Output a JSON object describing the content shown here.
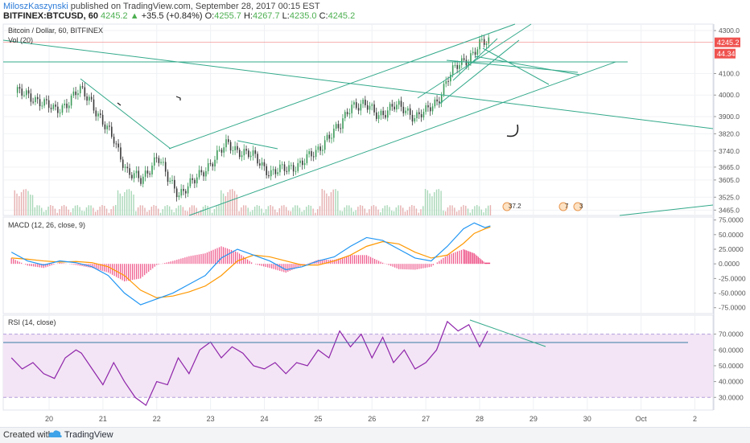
{
  "header": {
    "author": "MiloszKaszynski",
    "published_text": " published on TradingView.com, September 28, 2017 00:15 EST",
    "symbol": "BITFINEX:BTCUSD, 60",
    "price": "4245.2",
    "change_arrow": "▲",
    "change": "+35.5 (+0.84%)",
    "ohlc": {
      "o_label": "O:",
      "o": "4255.7",
      "h_label": "H:",
      "h": "4267.7",
      "l_label": "L:",
      "l": "4235.0",
      "c_label": "C:",
      "c": "4245.2"
    }
  },
  "footer": {
    "created_with": "Created with",
    "brand": "TradingView"
  },
  "colors": {
    "up": "#26a69a",
    "down": "#ef5350",
    "candle_up": "#3c9b5a",
    "candle_down": "#3a3a3a",
    "trendline": "#33a98a",
    "macd": "#2196f3",
    "signal": "#ff9800",
    "hist": "#e91e63",
    "rsi": "#8e24aa",
    "rsi_band": "#f3e5f5",
    "price_line": "#ef5350"
  },
  "chart_data": [
    {
      "type": "candlestick",
      "title": "Bitcoin / Dollar, 60, BITFINEX",
      "volume_label": "Vol (20)",
      "ylim": [
        3440,
        4330
      ],
      "y_ticks": [
        "4300.0",
        "4100.0",
        "4000.0",
        "3900.0",
        "3820.0",
        "3740.0",
        "3665.0",
        "3605.0",
        "3525.0",
        "3465.0"
      ],
      "last_price_label": "4245.2",
      "volume_label_value": "44.34",
      "x_ticks": [
        "20",
        "21",
        "22",
        "23",
        "24",
        "25",
        "26",
        "27",
        "28",
        "29",
        "30",
        "Oct",
        "2"
      ],
      "series_path": [
        [
          19.4,
          4010
        ],
        [
          19.7,
          3990
        ],
        [
          19.9,
          3960
        ],
        [
          20.1,
          3925
        ],
        [
          20.3,
          3960
        ],
        [
          20.55,
          4020
        ],
        [
          20.75,
          3985
        ],
        [
          21.0,
          3860
        ],
        [
          21.2,
          3790
        ],
        [
          21.45,
          3640
        ],
        [
          21.7,
          3600
        ],
        [
          22.0,
          3720
        ],
        [
          22.2,
          3605
        ],
        [
          22.4,
          3545
        ],
        [
          22.7,
          3600
        ],
        [
          23.0,
          3690
        ],
        [
          23.3,
          3770
        ],
        [
          23.55,
          3740
        ],
        [
          23.8,
          3710
        ],
        [
          24.1,
          3640
        ],
        [
          24.4,
          3655
        ],
        [
          24.7,
          3690
        ],
        [
          24.95,
          3730
        ],
        [
          25.15,
          3805
        ],
        [
          25.4,
          3850
        ],
        [
          25.6,
          3960
        ],
        [
          25.85,
          3950
        ],
        [
          26.1,
          3910
        ],
        [
          26.4,
          3945
        ],
        [
          26.6,
          3935
        ],
        [
          26.8,
          3900
        ],
        [
          27.0,
          3920
        ],
        [
          27.2,
          3975
        ],
        [
          27.4,
          4080
        ],
        [
          27.6,
          4140
        ],
        [
          27.8,
          4180
        ],
        [
          28.0,
          4235
        ],
        [
          28.15,
          4245
        ]
      ],
      "annotations": [
        "37.2",
        "7",
        "3"
      ]
    },
    {
      "type": "line",
      "title": "MACD (12, 26, close, 9)",
      "ylim": [
        -85,
        80
      ],
      "y_ticks": [
        "75.0000",
        "50.0000",
        "25.0000",
        "0.0000",
        "-25.0000",
        "-50.0000",
        "-75.0000"
      ],
      "series": [
        {
          "name": "MACD",
          "x": [
            19.3,
            19.6,
            19.9,
            20.2,
            20.5,
            20.8,
            21.1,
            21.4,
            21.7,
            22.0,
            22.3,
            22.6,
            22.9,
            23.2,
            23.5,
            23.8,
            24.1,
            24.4,
            24.7,
            25.0,
            25.3,
            25.6,
            25.9,
            26.2,
            26.5,
            26.8,
            27.1,
            27.4,
            27.7,
            27.9,
            28.1,
            28.2
          ],
          "values": [
            20,
            5,
            -2,
            5,
            2,
            -5,
            -20,
            -50,
            -70,
            -60,
            -50,
            -35,
            -20,
            10,
            25,
            15,
            5,
            -10,
            -5,
            5,
            12,
            30,
            45,
            40,
            25,
            10,
            5,
            30,
            60,
            70,
            62,
            65
          ]
        },
        {
          "name": "Signal",
          "x": [
            19.3,
            19.6,
            19.9,
            20.2,
            20.5,
            20.8,
            21.1,
            21.4,
            21.7,
            22.0,
            22.3,
            22.6,
            22.9,
            23.2,
            23.5,
            23.8,
            24.1,
            24.4,
            24.7,
            25.0,
            25.3,
            25.6,
            25.9,
            26.2,
            26.5,
            26.8,
            27.1,
            27.4,
            27.7,
            27.9,
            28.1,
            28.2
          ],
          "values": [
            10,
            8,
            5,
            3,
            4,
            2,
            -5,
            -20,
            -45,
            -58,
            -55,
            -48,
            -38,
            -20,
            5,
            15,
            12,
            5,
            -2,
            -2,
            5,
            15,
            30,
            38,
            34,
            20,
            10,
            15,
            35,
            52,
            60,
            63
          ]
        },
        {
          "name": "Histogram",
          "x": [
            19.3,
            19.6,
            19.9,
            20.2,
            20.5,
            20.8,
            21.1,
            21.4,
            21.7,
            22.0,
            22.3,
            22.6,
            22.9,
            23.2,
            23.5,
            23.8,
            24.1,
            24.4,
            24.7,
            25.0,
            25.3,
            25.6,
            25.9,
            26.2,
            26.5,
            26.8,
            27.1,
            27.4,
            27.7,
            27.9,
            28.1,
            28.2
          ],
          "values": [
            10,
            -3,
            -7,
            2,
            -2,
            -7,
            -15,
            -30,
            -25,
            -2,
            5,
            13,
            18,
            30,
            20,
            0,
            -7,
            -15,
            -3,
            7,
            7,
            15,
            15,
            2,
            -9,
            -10,
            -5,
            15,
            25,
            18,
            2,
            2
          ]
        }
      ]
    },
    {
      "type": "line",
      "title": "RSI (14, close)",
      "ylim": [
        22,
        82
      ],
      "y_ticks": [
        "70.0000",
        "60.0000",
        "50.0000",
        "40.0000",
        "30.0000"
      ],
      "band": [
        30,
        70
      ],
      "series": [
        {
          "name": "RSI",
          "x": [
            19.3,
            19.5,
            19.7,
            19.9,
            20.1,
            20.3,
            20.5,
            20.6,
            20.8,
            21.0,
            21.2,
            21.4,
            21.6,
            21.8,
            22.0,
            22.2,
            22.4,
            22.6,
            22.8,
            23.0,
            23.2,
            23.4,
            23.6,
            23.8,
            24.0,
            24.2,
            24.4,
            24.6,
            24.8,
            25.0,
            25.2,
            25.4,
            25.6,
            25.8,
            26.0,
            26.2,
            26.4,
            26.6,
            26.8,
            27.0,
            27.2,
            27.4,
            27.6,
            27.8,
            28.0,
            28.15
          ],
          "values": [
            55,
            48,
            52,
            45,
            42,
            55,
            60,
            58,
            48,
            38,
            52,
            40,
            30,
            25,
            40,
            38,
            55,
            45,
            60,
            65,
            55,
            62,
            58,
            50,
            48,
            52,
            45,
            52,
            50,
            60,
            55,
            72,
            62,
            70,
            55,
            68,
            52,
            60,
            48,
            52,
            60,
            78,
            72,
            76,
            62,
            72
          ]
        }
      ]
    }
  ]
}
